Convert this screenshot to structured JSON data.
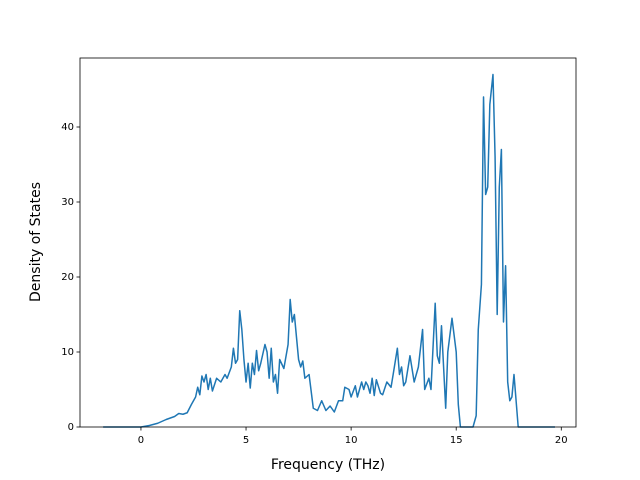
{
  "chart_data": {
    "type": "line",
    "xlabel": "Frequency (THz)",
    "ylabel": "Density of States",
    "xlim": [
      -2.9,
      20.7
    ],
    "ylim": [
      0,
      49.2
    ],
    "xticks": [
      0,
      5,
      10,
      15,
      20
    ],
    "yticks": [
      0,
      10,
      20,
      30,
      40
    ],
    "grid": false,
    "x": [
      -1.8,
      0.0,
      0.4,
      0.8,
      1.2,
      1.6,
      1.8,
      2.0,
      2.2,
      2.4,
      2.6,
      2.7,
      2.8,
      2.9,
      3.0,
      3.1,
      3.2,
      3.3,
      3.4,
      3.6,
      3.8,
      4.0,
      4.1,
      4.3,
      4.4,
      4.5,
      4.6,
      4.7,
      4.8,
      4.9,
      5.0,
      5.1,
      5.2,
      5.3,
      5.4,
      5.5,
      5.6,
      5.7,
      5.9,
      6.0,
      6.1,
      6.2,
      6.3,
      6.4,
      6.5,
      6.6,
      6.8,
      7.0,
      7.1,
      7.2,
      7.3,
      7.4,
      7.5,
      7.6,
      7.7,
      7.8,
      8.0,
      8.2,
      8.4,
      8.6,
      8.8,
      9.0,
      9.2,
      9.4,
      9.6,
      9.7,
      9.9,
      10.0,
      10.2,
      10.3,
      10.5,
      10.6,
      10.7,
      10.8,
      10.9,
      11.0,
      11.1,
      11.2,
      11.4,
      11.5,
      11.7,
      11.9,
      12.0,
      12.2,
      12.3,
      12.4,
      12.5,
      12.6,
      12.8,
      13.0,
      13.2,
      13.4,
      13.5,
      13.7,
      13.8,
      14.0,
      14.1,
      14.2,
      14.3,
      14.5,
      14.6,
      14.8,
      15.0,
      15.1,
      15.2,
      15.8,
      15.95,
      16.05,
      16.2,
      16.3,
      16.4,
      16.5,
      16.6,
      16.75,
      16.85,
      16.95,
      17.05,
      17.15,
      17.25,
      17.35,
      17.45,
      17.55,
      17.65,
      17.75,
      17.95,
      19.7
    ],
    "series": [
      {
        "color": "#1f77b4",
        "values": [
          0,
          0,
          0.2,
          0.5,
          1.0,
          1.4,
          1.8,
          1.7,
          1.9,
          3.0,
          4.0,
          5.3,
          4.3,
          6.8,
          6.0,
          7.0,
          5.0,
          6.5,
          4.8,
          6.5,
          6.0,
          7.0,
          6.5,
          8.0,
          10.5,
          8.5,
          9.0,
          15.5,
          13.0,
          9.0,
          6.0,
          8.5,
          5.2,
          8.5,
          7.0,
          10.2,
          7.5,
          8.5,
          11.0,
          10.0,
          6.5,
          10.5,
          6.0,
          7.0,
          4.5,
          9.0,
          7.8,
          11.0,
          17.0,
          14.0,
          15.0,
          12.0,
          9.0,
          8.0,
          8.8,
          6.5,
          7.0,
          2.5,
          2.2,
          3.5,
          2.2,
          2.8,
          2.0,
          3.5,
          3.5,
          5.3,
          5.0,
          4.0,
          5.5,
          4.0,
          6.0,
          5.0,
          6.0,
          5.5,
          4.5,
          6.5,
          4.2,
          6.3,
          4.5,
          4.3,
          6.0,
          5.3,
          7.0,
          10.5,
          7.0,
          8.0,
          5.5,
          6.0,
          9.5,
          6.0,
          8.0,
          13.0,
          5.0,
          6.5,
          5.0,
          16.5,
          9.5,
          8.5,
          13.5,
          2.5,
          10.0,
          14.5,
          10.0,
          3.0,
          0,
          0,
          1.5,
          13.0,
          19.0,
          44.0,
          31.0,
          32.0,
          43.0,
          47.0,
          36.0,
          15.0,
          32.0,
          37.0,
          14.0,
          21.5,
          6.0,
          3.5,
          4.0,
          7.0,
          0,
          0
        ]
      }
    ]
  }
}
